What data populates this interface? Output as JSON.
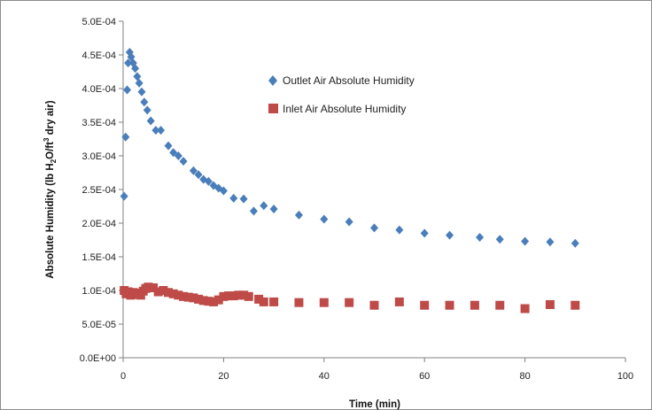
{
  "chart_data": {
    "type": "scatter",
    "title": "",
    "xlabel": "Time (min)",
    "ylabel": "Absolute Humidity (lb H2O/ft3 dry air)",
    "ylabel_parts": [
      "Absolute Humidity (lb H",
      "2",
      "O/ft",
      "3",
      " dry air)"
    ],
    "xlim": [
      0,
      100
    ],
    "ylim": [
      0,
      0.0005
    ],
    "x_ticks": [
      0,
      20,
      40,
      60,
      80,
      100
    ],
    "x_tick_labels": [
      "0",
      "20",
      "40",
      "60",
      "80",
      "100"
    ],
    "y_ticks": [
      0,
      5e-05,
      0.0001,
      0.00015,
      0.0002,
      0.00025,
      0.0003,
      0.00035,
      0.0004,
      0.00045,
      0.0005
    ],
    "y_tick_labels": [
      "0.0E+00",
      "5.0E-05",
      "1.0E-04",
      "1.5E-04",
      "2.0E-04",
      "2.5E-04",
      "3.0E-04",
      "3.5E-04",
      "4.0E-04",
      "4.5E-04",
      "5.0E-04"
    ],
    "grid": false,
    "legend_position": "upper-right",
    "series": [
      {
        "name": "Outlet Air Absolute Humidity",
        "color": "#4a7ebb",
        "marker": "diamond",
        "x": [
          0.2,
          0.5,
          0.8,
          1.0,
          1.3,
          1.6,
          2.0,
          2.4,
          2.8,
          3.2,
          3.7,
          4.2,
          4.8,
          5.5,
          6.5,
          7.5,
          9,
          10,
          11,
          12,
          14,
          15,
          16,
          17,
          18,
          19,
          20,
          22,
          24,
          26,
          28,
          30,
          35,
          40,
          45,
          50,
          55,
          60,
          65,
          71,
          75,
          80,
          85,
          90
        ],
        "y": [
          0.00024,
          0.000328,
          0.000398,
          0.000438,
          0.000454,
          0.000447,
          0.000438,
          0.00043,
          0.000418,
          0.000408,
          0.000395,
          0.00038,
          0.000368,
          0.000352,
          0.000338,
          0.000338,
          0.000315,
          0.000305,
          0.0003,
          0.000292,
          0.000278,
          0.000272,
          0.000265,
          0.000262,
          0.000256,
          0.000252,
          0.000248,
          0.000237,
          0.000236,
          0.000218,
          0.000226,
          0.000221,
          0.000212,
          0.000206,
          0.000202,
          0.000193,
          0.00019,
          0.000185,
          0.000182,
          0.000179,
          0.000176,
          0.000173,
          0.000172,
          0.00017
        ]
      },
      {
        "name": "Inlet Air Absolute Humidity",
        "color": "#be4b48",
        "marker": "square",
        "x": [
          0.2,
          0.6,
          1.0,
          1.5,
          2.0,
          2.5,
          3.0,
          3.5,
          4.0,
          4.5,
          5.0,
          6.0,
          7.0,
          8.0,
          9.0,
          10,
          11,
          12,
          13,
          14,
          15,
          16,
          17,
          18,
          19,
          20,
          21,
          22,
          23,
          24,
          25,
          27,
          28,
          30,
          35,
          40,
          45,
          50,
          55,
          60,
          65,
          70,
          75,
          80,
          85,
          90
        ],
        "y": [
          0.0001,
          9.5e-05,
          9.8e-05,
          9.3e-05,
          9.7e-05,
          9.4e-05,
          9.6e-05,
          9.3e-05,
          9.9e-05,
          0.000103,
          0.000105,
          0.000104,
          9.8e-05,
          0.0001,
          9.7e-05,
          9.5e-05,
          9.3e-05,
          9.1e-05,
          9e-05,
          8.9e-05,
          8.7e-05,
          8.5e-05,
          8.4e-05,
          8.3e-05,
          8.6e-05,
          9.1e-05,
          9.2e-05,
          9.2e-05,
          9.3e-05,
          9.3e-05,
          9.1e-05,
          8.7e-05,
          8.3e-05,
          8.3e-05,
          8.2e-05,
          8.2e-05,
          8.2e-05,
          7.8e-05,
          8.3e-05,
          7.8e-05,
          7.8e-05,
          7.8e-05,
          7.8e-05,
          7.3e-05,
          7.9e-05,
          7.8e-05
        ]
      }
    ]
  }
}
